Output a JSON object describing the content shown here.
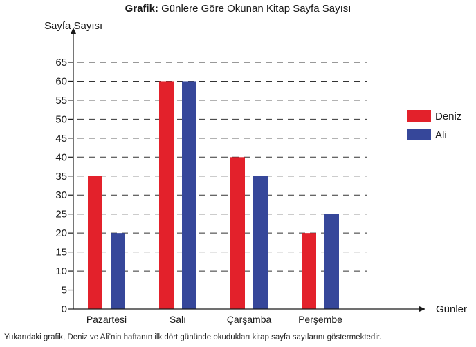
{
  "title": {
    "prefix": "Grafik:",
    "text": "Günlere Göre Okunan Kitap Sayfa Sayısı"
  },
  "caption": "Yukarıdaki grafik, Deniz ve Ali’nin haftanın ilk dört gününde okudukları kitap sayfa sayılarını göstermektedir.",
  "chart_data": {
    "type": "bar",
    "title": "Grafik: Günlere Göre Okunan Kitap Sayfa Sayısı",
    "xlabel": "Günler",
    "ylabel": "Sayfa Sayısı",
    "categories": [
      "Pazartesi",
      "Salı",
      "Çarşamba",
      "Perşembe"
    ],
    "series": [
      {
        "name": "Deniz",
        "color": "#e3212b",
        "values": [
          35,
          60,
          40,
          20
        ]
      },
      {
        "name": "Ali",
        "color": "#36479a",
        "values": [
          20,
          60,
          35,
          25
        ]
      }
    ],
    "yticks": [
      0,
      5,
      10,
      15,
      20,
      25,
      30,
      35,
      40,
      45,
      50,
      55,
      60,
      65
    ],
    "ylim": [
      0,
      65
    ],
    "grid": true,
    "legend": "right"
  }
}
